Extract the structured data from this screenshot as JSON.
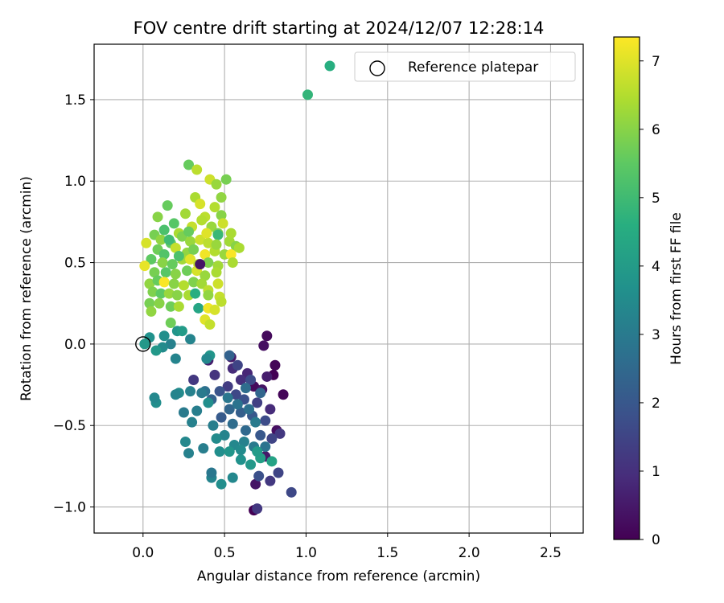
{
  "chart_data": {
    "type": "scatter",
    "title": "FOV centre drift starting at 2024/12/07 12:28:14",
    "xlabel": "Angular distance from reference (arcmin)",
    "ylabel": "Rotation from reference (arcmin)",
    "xlim": [
      -0.3,
      2.7
    ],
    "ylim": [
      -1.16,
      1.84
    ],
    "xticks": [
      0.0,
      0.5,
      1.0,
      1.5,
      2.0,
      2.5
    ],
    "xtick_labels": [
      "0.0",
      "0.5",
      "1.0",
      "1.5",
      "2.0",
      "2.5"
    ],
    "yticks": [
      -1.0,
      -0.5,
      0.0,
      0.5,
      1.0,
      1.5
    ],
    "ytick_labels": [
      "−1.0",
      "−0.5",
      "0.0",
      "0.5",
      "1.0",
      "1.5"
    ],
    "grid": true,
    "colormap": "viridis",
    "colorbar": {
      "label": "Hours from first FF file",
      "range": [
        0,
        7.35
      ],
      "ticks": [
        0,
        1,
        2,
        3,
        4,
        5,
        6,
        7
      ],
      "tick_labels": [
        "0",
        "1",
        "2",
        "3",
        "4",
        "5",
        "6",
        "7"
      ]
    },
    "legend": {
      "placement": "top-right",
      "entries": [
        "",
        "Reference platepar"
      ]
    },
    "reference_point": {
      "x": 0.0,
      "y": 0.0
    },
    "series": [
      {
        "points": [
          {
            "x": 1.01,
            "y": 1.53,
            "hours": 4.8
          },
          {
            "x": 0.68,
            "y": -1.02,
            "hours": 0.0
          },
          {
            "x": 0.69,
            "y": -0.86,
            "hours": 0.4
          },
          {
            "x": 0.75,
            "y": -0.69,
            "hours": 0.5
          },
          {
            "x": 0.78,
            "y": -0.84,
            "hours": 1.2
          },
          {
            "x": 0.83,
            "y": -0.79,
            "hours": 1.5
          },
          {
            "x": 0.91,
            "y": -0.91,
            "hours": 1.6
          },
          {
            "x": 0.76,
            "y": 0.05,
            "hours": 0.2
          },
          {
            "x": 0.74,
            "y": -0.01,
            "hours": 0.3
          },
          {
            "x": 0.86,
            "y": -0.31,
            "hours": 0.1
          },
          {
            "x": 0.81,
            "y": -0.13,
            "hours": 0.1
          },
          {
            "x": 0.8,
            "y": -0.19,
            "hours": 0.0
          },
          {
            "x": 0.68,
            "y": -0.26,
            "hours": 0.2
          },
          {
            "x": 0.73,
            "y": -0.28,
            "hours": 0.4
          },
          {
            "x": 0.76,
            "y": -0.2,
            "hours": 0.6
          },
          {
            "x": 0.64,
            "y": -0.18,
            "hours": 0.8
          },
          {
            "x": 0.6,
            "y": -0.22,
            "hours": 1.0
          },
          {
            "x": 0.55,
            "y": -0.15,
            "hours": 0.9
          },
          {
            "x": 0.54,
            "y": -0.08,
            "hours": 0.5
          },
          {
            "x": 0.44,
            "y": -0.19,
            "hours": 1.1
          },
          {
            "x": 0.4,
            "y": -0.1,
            "hours": 0.6
          },
          {
            "x": 0.31,
            "y": -0.22,
            "hours": 1.2
          },
          {
            "x": 0.52,
            "y": -0.26,
            "hours": 1.3
          },
          {
            "x": 0.57,
            "y": -0.31,
            "hours": 1.6
          },
          {
            "x": 0.62,
            "y": -0.34,
            "hours": 1.8
          },
          {
            "x": 0.7,
            "y": -0.36,
            "hours": 1.4
          },
          {
            "x": 0.78,
            "y": -0.4,
            "hours": 0.9
          },
          {
            "x": 0.82,
            "y": -0.53,
            "hours": 0.3
          },
          {
            "x": 0.84,
            "y": -0.55,
            "hours": 1.2
          },
          {
            "x": 0.75,
            "y": -0.47,
            "hours": 1.7
          },
          {
            "x": 0.67,
            "y": -0.44,
            "hours": 2.0
          },
          {
            "x": 0.6,
            "y": -0.42,
            "hours": 2.2
          },
          {
            "x": 0.53,
            "y": -0.4,
            "hours": 2.4
          },
          {
            "x": 0.48,
            "y": -0.45,
            "hours": 2.1
          },
          {
            "x": 0.42,
            "y": -0.34,
            "hours": 2.3
          },
          {
            "x": 0.47,
            "y": -0.29,
            "hours": 1.9
          },
          {
            "x": 0.38,
            "y": -0.29,
            "hours": 2.7
          },
          {
            "x": 0.55,
            "y": -0.49,
            "hours": 2.6
          },
          {
            "x": 0.63,
            "y": -0.53,
            "hours": 2.5
          },
          {
            "x": 0.72,
            "y": -0.56,
            "hours": 2.0
          },
          {
            "x": 0.79,
            "y": -0.58,
            "hours": 1.5
          },
          {
            "x": 0.75,
            "y": -0.63,
            "hours": 2.8
          },
          {
            "x": 0.68,
            "y": -0.63,
            "hours": 3.0
          },
          {
            "x": 0.62,
            "y": -0.6,
            "hours": 3.2
          },
          {
            "x": 0.56,
            "y": -0.62,
            "hours": 3.4
          },
          {
            "x": 0.5,
            "y": -0.56,
            "hours": 3.3
          },
          {
            "x": 0.45,
            "y": -0.58,
            "hours": 3.5
          },
          {
            "x": 0.43,
            "y": -0.5,
            "hours": 3.1
          },
          {
            "x": 0.47,
            "y": -0.66,
            "hours": 3.6
          },
          {
            "x": 0.53,
            "y": -0.66,
            "hours": 3.8
          },
          {
            "x": 0.6,
            "y": -0.71,
            "hours": 3.7
          },
          {
            "x": 0.66,
            "y": -0.74,
            "hours": 3.9
          },
          {
            "x": 0.72,
            "y": -0.7,
            "hours": 4.1
          },
          {
            "x": 0.79,
            "y": -0.72,
            "hours": 4.2
          },
          {
            "x": 0.7,
            "y": -0.66,
            "hours": 4.0
          },
          {
            "x": 0.6,
            "y": -0.65,
            "hours": 3.5
          },
          {
            "x": 0.55,
            "y": -0.82,
            "hours": 3.4
          },
          {
            "x": 0.48,
            "y": -0.86,
            "hours": 3.6
          },
          {
            "x": 0.42,
            "y": -0.82,
            "hours": 3.3
          },
          {
            "x": 0.42,
            "y": -0.79,
            "hours": 2.9
          },
          {
            "x": 0.37,
            "y": -0.64,
            "hours": 3.1
          },
          {
            "x": 0.28,
            "y": -0.67,
            "hours": 3.2
          },
          {
            "x": 0.26,
            "y": -0.6,
            "hours": 3.4
          },
          {
            "x": 0.3,
            "y": -0.48,
            "hours": 3.2
          },
          {
            "x": 0.33,
            "y": -0.41,
            "hours": 3.1
          },
          {
            "x": 0.25,
            "y": -0.42,
            "hours": 3.0
          },
          {
            "x": 0.29,
            "y": -0.29,
            "hours": 3.2
          },
          {
            "x": 0.36,
            "y": -0.3,
            "hours": 3.0
          },
          {
            "x": 0.22,
            "y": -0.3,
            "hours": 3.5
          },
          {
            "x": 0.2,
            "y": -0.31,
            "hours": 3.3
          },
          {
            "x": 0.4,
            "y": -0.36,
            "hours": 3.6
          },
          {
            "x": 0.41,
            "y": -0.07,
            "hours": 3.8
          },
          {
            "x": 0.39,
            "y": -0.09,
            "hours": 3.4
          },
          {
            "x": 0.08,
            "y": -0.36,
            "hours": 3.6
          },
          {
            "x": 0.07,
            "y": -0.33,
            "hours": 3.4
          },
          {
            "x": 0.2,
            "y": -0.09,
            "hours": 3.3
          },
          {
            "x": 0.17,
            "y": 0.0,
            "hours": 3.2
          },
          {
            "x": 0.12,
            "y": -0.02,
            "hours": 3.5
          },
          {
            "x": 0.08,
            "y": -0.04,
            "hours": 3.9
          },
          {
            "x": 0.04,
            "y": 0.04,
            "hours": 3.7
          },
          {
            "x": 0.13,
            "y": 0.05,
            "hours": 3.6
          },
          {
            "x": 0.21,
            "y": 0.08,
            "hours": 3.8
          },
          {
            "x": 0.24,
            "y": 0.08,
            "hours": 4.0
          },
          {
            "x": 0.29,
            "y": 0.03,
            "hours": 3.3
          },
          {
            "x": 0.01,
            "y": 0.0,
            "hours": 3.9
          },
          {
            "x": 0.53,
            "y": -0.07,
            "hours": 2.3
          },
          {
            "x": 0.58,
            "y": -0.13,
            "hours": 1.5
          },
          {
            "x": 0.66,
            "y": -0.22,
            "hours": 1.7
          },
          {
            "x": 0.72,
            "y": -0.3,
            "hours": 2.4
          },
          {
            "x": 0.63,
            "y": -0.27,
            "hours": 2.6
          },
          {
            "x": 0.58,
            "y": -0.37,
            "hours": 2.8
          },
          {
            "x": 0.52,
            "y": -0.33,
            "hours": 2.9
          },
          {
            "x": 0.69,
            "y": -0.48,
            "hours": 3.0
          },
          {
            "x": 0.65,
            "y": -0.4,
            "hours": 2.7
          },
          {
            "x": 0.71,
            "y": -0.81,
            "hours": 1.8
          },
          {
            "x": 0.7,
            "y": -1.01,
            "hours": 1.2
          },
          {
            "x": 0.28,
            "y": 1.1,
            "hours": 5.6
          },
          {
            "x": 0.33,
            "y": 1.07,
            "hours": 6.6
          },
          {
            "x": 0.41,
            "y": 1.01,
            "hours": 6.8
          },
          {
            "x": 0.45,
            "y": 0.98,
            "hours": 6.2
          },
          {
            "x": 0.51,
            "y": 1.01,
            "hours": 5.8
          },
          {
            "x": 0.32,
            "y": 0.9,
            "hours": 6.4
          },
          {
            "x": 0.48,
            "y": 0.9,
            "hours": 6.1
          },
          {
            "x": 0.15,
            "y": 0.85,
            "hours": 5.6
          },
          {
            "x": 0.35,
            "y": 0.86,
            "hours": 6.9
          },
          {
            "x": 0.44,
            "y": 0.84,
            "hours": 6.5
          },
          {
            "x": 0.09,
            "y": 0.78,
            "hours": 6.0
          },
          {
            "x": 0.26,
            "y": 0.8,
            "hours": 6.3
          },
          {
            "x": 0.38,
            "y": 0.78,
            "hours": 6.6
          },
          {
            "x": 0.48,
            "y": 0.79,
            "hours": 6.0
          },
          {
            "x": 0.13,
            "y": 0.7,
            "hours": 5.2
          },
          {
            "x": 0.19,
            "y": 0.74,
            "hours": 5.4
          },
          {
            "x": 0.22,
            "y": 0.68,
            "hours": 6.4
          },
          {
            "x": 0.3,
            "y": 0.72,
            "hours": 6.7
          },
          {
            "x": 0.36,
            "y": 0.76,
            "hours": 6.5
          },
          {
            "x": 0.42,
            "y": 0.72,
            "hours": 6.2
          },
          {
            "x": 0.46,
            "y": 0.68,
            "hours": 5.9
          },
          {
            "x": 0.07,
            "y": 0.67,
            "hours": 5.8
          },
          {
            "x": 0.11,
            "y": 0.64,
            "hours": 6.1
          },
          {
            "x": 0.17,
            "y": 0.62,
            "hours": 5.5
          },
          {
            "x": 0.24,
            "y": 0.66,
            "hours": 5.9
          },
          {
            "x": 0.29,
            "y": 0.63,
            "hours": 6.2
          },
          {
            "x": 0.35,
            "y": 0.64,
            "hours": 6.8
          },
          {
            "x": 0.4,
            "y": 0.62,
            "hours": 6.6
          },
          {
            "x": 0.53,
            "y": 0.63,
            "hours": 6.3
          },
          {
            "x": 0.57,
            "y": 0.6,
            "hours": 6.0
          },
          {
            "x": 0.59,
            "y": 0.59,
            "hours": 6.4
          },
          {
            "x": 0.02,
            "y": 0.62,
            "hours": 6.9
          },
          {
            "x": 0.09,
            "y": 0.58,
            "hours": 5.7
          },
          {
            "x": 0.13,
            "y": 0.55,
            "hours": 5.3
          },
          {
            "x": 0.2,
            "y": 0.59,
            "hours": 6.7
          },
          {
            "x": 0.27,
            "y": 0.56,
            "hours": 6.1
          },
          {
            "x": 0.31,
            "y": 0.58,
            "hours": 5.8
          },
          {
            "x": 0.38,
            "y": 0.55,
            "hours": 7.2
          },
          {
            "x": 0.44,
            "y": 0.57,
            "hours": 6.5
          },
          {
            "x": 0.5,
            "y": 0.55,
            "hours": 6.2
          },
          {
            "x": 0.54,
            "y": 0.55,
            "hours": 7.3
          },
          {
            "x": 0.55,
            "y": 0.5,
            "hours": 6.4
          },
          {
            "x": 0.05,
            "y": 0.52,
            "hours": 5.5
          },
          {
            "x": 0.12,
            "y": 0.5,
            "hours": 6.0
          },
          {
            "x": 0.18,
            "y": 0.49,
            "hours": 5.6
          },
          {
            "x": 0.24,
            "y": 0.52,
            "hours": 6.3
          },
          {
            "x": 0.29,
            "y": 0.52,
            "hours": 7.0
          },
          {
            "x": 0.34,
            "y": 0.49,
            "hours": 6.6
          },
          {
            "x": 0.4,
            "y": 0.5,
            "hours": 5.9
          },
          {
            "x": 0.46,
            "y": 0.48,
            "hours": 6.3
          },
          {
            "x": 0.01,
            "y": 0.48,
            "hours": 7.1
          },
          {
            "x": 0.07,
            "y": 0.44,
            "hours": 5.8
          },
          {
            "x": 0.14,
            "y": 0.44,
            "hours": 5.4
          },
          {
            "x": 0.2,
            "y": 0.43,
            "hours": 6.0
          },
          {
            "x": 0.27,
            "y": 0.45,
            "hours": 5.7
          },
          {
            "x": 0.33,
            "y": 0.45,
            "hours": 6.9
          },
          {
            "x": 0.38,
            "y": 0.42,
            "hours": 6.2
          },
          {
            "x": 0.45,
            "y": 0.44,
            "hours": 6.4
          },
          {
            "x": 0.04,
            "y": 0.37,
            "hours": 6.1
          },
          {
            "x": 0.09,
            "y": 0.39,
            "hours": 5.6
          },
          {
            "x": 0.13,
            "y": 0.38,
            "hours": 7.3
          },
          {
            "x": 0.19,
            "y": 0.37,
            "hours": 6.0
          },
          {
            "x": 0.25,
            "y": 0.36,
            "hours": 6.5
          },
          {
            "x": 0.31,
            "y": 0.38,
            "hours": 5.9
          },
          {
            "x": 0.36,
            "y": 0.37,
            "hours": 6.3
          },
          {
            "x": 0.4,
            "y": 0.33,
            "hours": 6.6
          },
          {
            "x": 0.46,
            "y": 0.37,
            "hours": 6.8
          },
          {
            "x": 0.06,
            "y": 0.32,
            "hours": 5.9
          },
          {
            "x": 0.11,
            "y": 0.31,
            "hours": 5.5
          },
          {
            "x": 0.16,
            "y": 0.31,
            "hours": 6.2
          },
          {
            "x": 0.21,
            "y": 0.3,
            "hours": 6.0
          },
          {
            "x": 0.28,
            "y": 0.3,
            "hours": 6.4
          },
          {
            "x": 0.32,
            "y": 0.31,
            "hours": 4.6
          },
          {
            "x": 0.4,
            "y": 0.3,
            "hours": 6.1
          },
          {
            "x": 0.47,
            "y": 0.29,
            "hours": 6.7
          },
          {
            "x": 0.04,
            "y": 0.25,
            "hours": 5.8
          },
          {
            "x": 0.1,
            "y": 0.25,
            "hours": 6.0
          },
          {
            "x": 0.17,
            "y": 0.23,
            "hours": 5.7
          },
          {
            "x": 0.22,
            "y": 0.23,
            "hours": 6.4
          },
          {
            "x": 0.34,
            "y": 0.22,
            "hours": 4.3
          },
          {
            "x": 0.4,
            "y": 0.22,
            "hours": 7.2
          },
          {
            "x": 0.44,
            "y": 0.21,
            "hours": 6.9
          },
          {
            "x": 0.48,
            "y": 0.26,
            "hours": 6.6
          },
          {
            "x": 0.05,
            "y": 0.2,
            "hours": 6.1
          },
          {
            "x": 0.38,
            "y": 0.15,
            "hours": 7.0
          },
          {
            "x": 0.41,
            "y": 0.12,
            "hours": 6.7
          },
          {
            "x": 0.17,
            "y": 0.13,
            "hours": 5.7
          },
          {
            "x": 0.16,
            "y": 0.64,
            "hours": 5.0
          },
          {
            "x": 0.35,
            "y": 0.49,
            "hours": 0.4
          },
          {
            "x": 0.46,
            "y": 0.67,
            "hours": 4.9
          },
          {
            "x": 0.39,
            "y": 0.68,
            "hours": 7.0
          },
          {
            "x": 0.45,
            "y": 0.61,
            "hours": 6.2
          },
          {
            "x": 0.22,
            "y": 0.54,
            "hours": 5.2
          },
          {
            "x": 0.28,
            "y": 0.69,
            "hours": 5.6
          },
          {
            "x": 0.54,
            "y": 0.68,
            "hours": 6.4
          },
          {
            "x": 0.49,
            "y": 0.74,
            "hours": 6.8
          }
        ]
      }
    ]
  }
}
